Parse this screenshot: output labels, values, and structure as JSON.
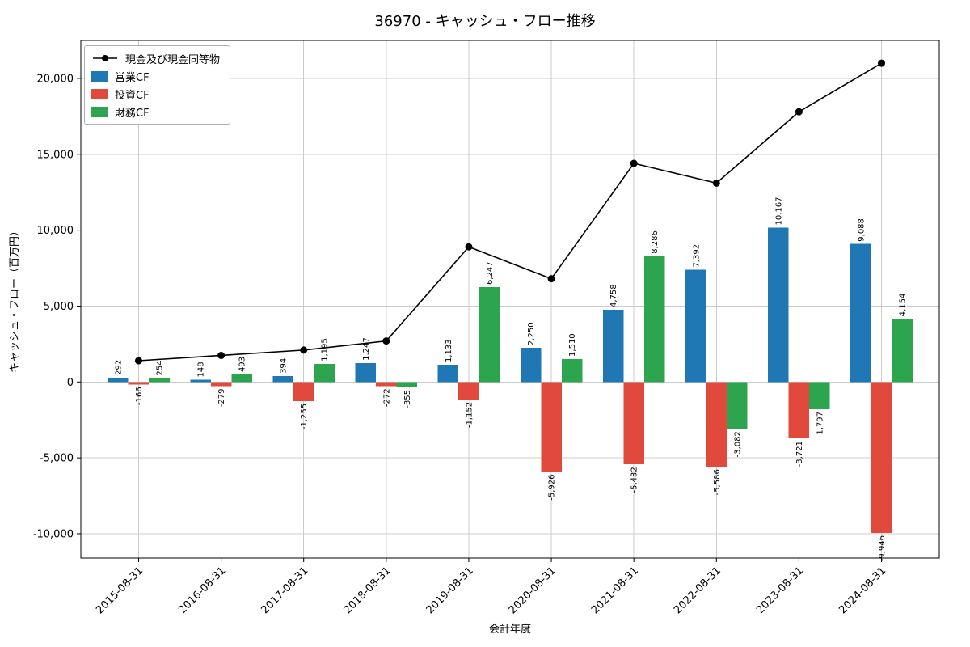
{
  "chart_data": {
    "type": "bar",
    "title": "36970 - キャッシュ・フロー推移",
    "xlabel": "会計年度",
    "ylabel": "キャッシュ・フロー（百万円）",
    "categories": [
      "2015-08-31",
      "2016-08-31",
      "2017-08-31",
      "2018-08-31",
      "2019-08-31",
      "2020-08-31",
      "2021-08-31",
      "2022-08-31",
      "2023-08-31",
      "2024-08-31"
    ],
    "series": [
      {
        "name": "現金及び現金同等物",
        "type": "line",
        "color": "#000000",
        "values": [
          1400,
          1750,
          2100,
          2700,
          8900,
          6800,
          14400,
          13100,
          17800,
          21000
        ]
      },
      {
        "name": "営業CF",
        "type": "bar",
        "color": "#1f77b4",
        "values": [
          292,
          148,
          394,
          1247,
          1133,
          2250,
          4758,
          7392,
          10167,
          9088
        ]
      },
      {
        "name": "投資CF",
        "type": "bar",
        "color": "#e2493d",
        "values": [
          -166,
          -279,
          -1255,
          -272,
          -1152,
          -5926,
          -5432,
          -5586,
          -3721,
          -9946
        ]
      },
      {
        "name": "財務CF",
        "type": "bar",
        "color": "#2da44e",
        "values": [
          254,
          493,
          1195,
          -355,
          6247,
          1510,
          8286,
          -3082,
          -1797,
          4154
        ]
      }
    ],
    "ylim": [
      -11600,
      22500
    ],
    "yticks": [
      -10000,
      -5000,
      0,
      5000,
      10000,
      15000,
      20000
    ],
    "grid": true,
    "legend_position": "upper left",
    "bar_value_labels": true
  }
}
